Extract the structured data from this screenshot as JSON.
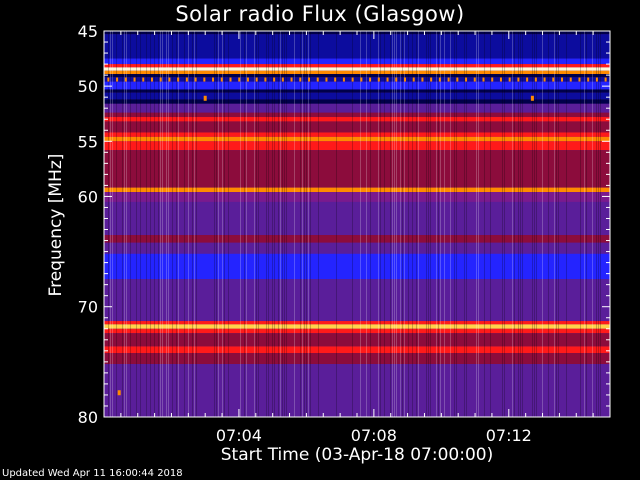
{
  "chart_data": {
    "type": "heatmap",
    "title": "Solar radio Flux (Glasgow)",
    "xlabel": "Start Time (03-Apr-18 07:00:00)",
    "ylabel": "Frequency [MHz]",
    "footer": "Updated Wed Apr 11 16:00:44 2018",
    "x_range_minutes": [
      0,
      15
    ],
    "xticks": [
      {
        "label": "07:04",
        "minute": 4
      },
      {
        "label": "07:08",
        "minute": 8
      },
      {
        "label": "07:12",
        "minute": 12
      }
    ],
    "ylim": [
      45,
      80
    ],
    "y_inverted": true,
    "yticks": [
      {
        "label": "45",
        "mhz": 45
      },
      {
        "label": "50",
        "mhz": 50
      },
      {
        "label": "55",
        "mhz": 55
      },
      {
        "label": "60",
        "mhz": 60
      },
      {
        "label": "70",
        "mhz": 70
      },
      {
        "label": "80",
        "mhz": 80
      }
    ],
    "colors": {
      "deep_blue": "#0c0c9e",
      "blue": "#2424ff",
      "navy": "#00004a",
      "purple": "#5a1e9a",
      "violet": "#7a1a8e",
      "maroon": "#8c0c3c",
      "red": "#ff1a1a",
      "orange": "#ff8a00",
      "yellow": "#ffd24a",
      "white": "#fff8d8"
    },
    "frequency_bands": [
      {
        "from": 45.0,
        "to": 45.3,
        "color": "navy"
      },
      {
        "from": 45.3,
        "to": 47.5,
        "color": "deep_blue"
      },
      {
        "from": 47.5,
        "to": 48.0,
        "color": "blue"
      },
      {
        "from": 48.0,
        "to": 48.3,
        "color": "red"
      },
      {
        "from": 48.3,
        "to": 48.6,
        "color": "white"
      },
      {
        "from": 48.6,
        "to": 48.9,
        "color": "orange"
      },
      {
        "from": 48.9,
        "to": 49.2,
        "color": "navy"
      },
      {
        "from": 49.2,
        "to": 49.6,
        "color": "deep_blue"
      },
      {
        "from": 49.6,
        "to": 50.3,
        "color": "blue"
      },
      {
        "from": 50.3,
        "to": 50.6,
        "color": "navy"
      },
      {
        "from": 50.6,
        "to": 51.2,
        "color": "deep_blue"
      },
      {
        "from": 51.2,
        "to": 51.6,
        "color": "navy"
      },
      {
        "from": 51.6,
        "to": 52.4,
        "color": "purple"
      },
      {
        "from": 52.4,
        "to": 52.8,
        "color": "maroon"
      },
      {
        "from": 52.8,
        "to": 53.2,
        "color": "red"
      },
      {
        "from": 53.2,
        "to": 54.2,
        "color": "maroon"
      },
      {
        "from": 54.2,
        "to": 54.6,
        "color": "red"
      },
      {
        "from": 54.6,
        "to": 55.0,
        "color": "orange"
      },
      {
        "from": 55.0,
        "to": 55.8,
        "color": "red"
      },
      {
        "from": 55.8,
        "to": 59.2,
        "color": "maroon"
      },
      {
        "from": 59.2,
        "to": 59.6,
        "color": "orange"
      },
      {
        "from": 59.6,
        "to": 60.5,
        "color": "violet"
      },
      {
        "from": 60.5,
        "to": 63.5,
        "color": "purple"
      },
      {
        "from": 63.5,
        "to": 64.2,
        "color": "maroon"
      },
      {
        "from": 64.2,
        "to": 65.2,
        "color": "purple"
      },
      {
        "from": 65.2,
        "to": 67.5,
        "color": "blue"
      },
      {
        "from": 67.5,
        "to": 71.3,
        "color": "purple"
      },
      {
        "from": 71.3,
        "to": 71.6,
        "color": "red"
      },
      {
        "from": 71.6,
        "to": 72.0,
        "color": "yellow"
      },
      {
        "from": 72.0,
        "to": 72.4,
        "color": "red"
      },
      {
        "from": 72.4,
        "to": 73.6,
        "color": "maroon"
      },
      {
        "from": 73.6,
        "to": 74.2,
        "color": "red"
      },
      {
        "from": 74.2,
        "to": 75.2,
        "color": "maroon"
      },
      {
        "from": 75.2,
        "to": 80.0,
        "color": "purple"
      }
    ],
    "spikes": [
      {
        "minute": 3.0,
        "mhz": 51.1,
        "color": "orange"
      },
      {
        "minute": 12.7,
        "mhz": 51.1,
        "color": "orange"
      },
      {
        "minute": 0.45,
        "mhz": 77.8,
        "color": "orange"
      }
    ],
    "periodic_dots": {
      "mhz": 49.4,
      "count": 58,
      "color": "orange"
    }
  }
}
